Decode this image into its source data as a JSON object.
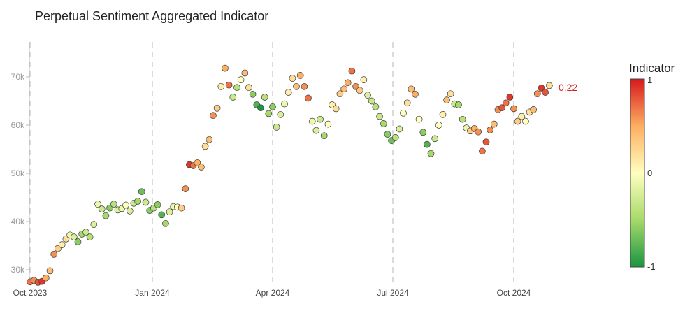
{
  "chart_data": {
    "type": "scatter",
    "title": "Perpetual Sentiment Aggregated Indicator",
    "xlabel": "",
    "ylabel": "",
    "x_ticks": [
      "Oct 2023",
      "Jan 2024",
      "Apr 2024",
      "Jul 2024",
      "Oct 2024"
    ],
    "y_ticks": [
      "30k",
      "40k",
      "50k",
      "60k",
      "70k"
    ],
    "ylim": [
      27000,
      77000
    ],
    "grid": "vertical dashed",
    "colorbar": {
      "title": "Indicator",
      "ticks": [
        "1",
        "0",
        "-1"
      ],
      "range": [
        -1,
        1
      ],
      "colors": [
        "#1a9641",
        "#a6d96a",
        "#ffffbf",
        "#fdae61",
        "#d7191c"
      ]
    },
    "last_value_label": "0.22",
    "series": [
      {
        "x": [
          "2023-10-01",
          "2023-10-04",
          "2023-10-07",
          "2023-10-10",
          "2023-10-13",
          "2023-10-16",
          "2023-10-19",
          "2023-10-22",
          "2023-10-25",
          "2023-10-28",
          "2023-10-31",
          "2023-11-03",
          "2023-11-06",
          "2023-11-09",
          "2023-11-12",
          "2023-11-15",
          "2023-11-18",
          "2023-11-21",
          "2023-11-24",
          "2023-11-27",
          "2023-11-30",
          "2023-12-03",
          "2023-12-06",
          "2023-12-09",
          "2023-12-12",
          "2023-12-15",
          "2023-12-18",
          "2023-12-21",
          "2023-12-24",
          "2023-12-27",
          "2023-12-30",
          "2024-01-02",
          "2024-01-05",
          "2024-01-08",
          "2024-01-11",
          "2024-01-14",
          "2024-01-17",
          "2024-01-20",
          "2024-01-23",
          "2024-01-26",
          "2024-01-29",
          "2024-02-01",
          "2024-02-04",
          "2024-02-07",
          "2024-02-10",
          "2024-02-13",
          "2024-02-16",
          "2024-02-19",
          "2024-02-22",
          "2024-02-25",
          "2024-02-28",
          "2024-03-02",
          "2024-03-05",
          "2024-03-08",
          "2024-03-11",
          "2024-03-14",
          "2024-03-17",
          "2024-03-20",
          "2024-03-23",
          "2024-03-26",
          "2024-03-29",
          "2024-04-01",
          "2024-04-04",
          "2024-04-07",
          "2024-04-10",
          "2024-04-13",
          "2024-04-16",
          "2024-04-19",
          "2024-04-22",
          "2024-04-25",
          "2024-04-28",
          "2024-05-01",
          "2024-05-04",
          "2024-05-07",
          "2024-05-10",
          "2024-05-13",
          "2024-05-16",
          "2024-05-19",
          "2024-05-22",
          "2024-05-25",
          "2024-05-28",
          "2024-05-31",
          "2024-06-03",
          "2024-06-06",
          "2024-06-09",
          "2024-06-12",
          "2024-06-15",
          "2024-06-18",
          "2024-06-21",
          "2024-06-24",
          "2024-06-27",
          "2024-06-30",
          "2024-07-03",
          "2024-07-06",
          "2024-07-09",
          "2024-07-12",
          "2024-07-15",
          "2024-07-18",
          "2024-07-21",
          "2024-07-24",
          "2024-07-27",
          "2024-07-30",
          "2024-08-02",
          "2024-08-05",
          "2024-08-08",
          "2024-08-11",
          "2024-08-14",
          "2024-08-17",
          "2024-08-20",
          "2024-08-23",
          "2024-08-26",
          "2024-08-29",
          "2024-09-01",
          "2024-09-04",
          "2024-09-07",
          "2024-09-10",
          "2024-09-13",
          "2024-09-16",
          "2024-09-19",
          "2024-09-22",
          "2024-09-25",
          "2024-09-28",
          "2024-10-01",
          "2024-10-04",
          "2024-10-07",
          "2024-10-10",
          "2024-10-13",
          "2024-10-16",
          "2024-10-19",
          "2024-10-22",
          "2024-10-25",
          "2024-10-28"
        ],
        "y": [
          27500,
          27800,
          27400,
          27600,
          28300,
          29800,
          33200,
          34400,
          35200,
          36400,
          37200,
          36800,
          35800,
          37400,
          37800,
          36800,
          39400,
          43600,
          42600,
          41200,
          42800,
          43600,
          42400,
          42700,
          43400,
          42200,
          43800,
          44200,
          46200,
          44000,
          42300,
          42800,
          43500,
          41400,
          39600,
          42000,
          43100,
          43000,
          42800,
          46800,
          51800,
          51600,
          52200,
          51300,
          55600,
          57000,
          62000,
          63500,
          68000,
          71800,
          68300,
          65800,
          67800,
          69400,
          70800,
          67800,
          66400,
          64200,
          63600,
          65800,
          62400,
          63800,
          59600,
          62200,
          64400,
          66800,
          69700,
          68000,
          70300,
          68000,
          65600,
          60800,
          58900,
          61200,
          57800,
          60200,
          64200,
          63400,
          66500,
          67500,
          68800,
          71200,
          68000,
          67200,
          69400,
          66200,
          65000,
          63800,
          61800,
          60300,
          58100,
          56800,
          57400,
          59200,
          62500,
          64600,
          67500,
          66400,
          61200,
          58500,
          56000,
          54100,
          57200,
          60000,
          62200,
          65200,
          66500,
          64400,
          64200,
          61200,
          59400,
          58800,
          59300,
          58600,
          54600,
          56500,
          59000,
          60200,
          63200,
          63600,
          64600,
          65800,
          63400,
          60800,
          61800,
          60800,
          62700,
          63200,
          66500,
          67700,
          66800,
          68200
        ],
        "indicator": [
          0.7,
          0.6,
          0.8,
          0.9,
          0.5,
          0.4,
          0.6,
          0.3,
          0.1,
          0.2,
          -0.1,
          -0.2,
          -0.6,
          -0.5,
          -0.3,
          -0.4,
          -0.2,
          -0.1,
          -0.3,
          -0.5,
          -0.6,
          -0.4,
          -0.2,
          -0.1,
          0.0,
          -0.2,
          -0.3,
          -0.5,
          -0.7,
          -0.3,
          -0.6,
          -0.4,
          -0.6,
          -0.8,
          -0.5,
          -0.2,
          -0.1,
          0.0,
          0.3,
          0.6,
          0.9,
          0.7,
          0.5,
          0.4,
          0.2,
          0.4,
          0.6,
          0.3,
          0.1,
          0.5,
          0.7,
          -0.3,
          -0.4,
          0.0,
          0.4,
          0.2,
          -0.6,
          -0.8,
          -1.0,
          -0.4,
          -0.5,
          -0.6,
          -0.3,
          -0.2,
          -0.1,
          0.1,
          0.2,
          0.4,
          0.5,
          0.6,
          0.7,
          -0.1,
          -0.2,
          -0.3,
          -0.5,
          0.0,
          0.1,
          0.2,
          0.3,
          0.4,
          0.5,
          0.7,
          0.6,
          0.3,
          0.1,
          -0.2,
          -0.3,
          -0.4,
          -0.3,
          -0.5,
          -0.6,
          -0.7,
          -0.4,
          -0.2,
          0.0,
          0.2,
          0.4,
          0.5,
          0.0,
          -0.6,
          -0.8,
          -0.5,
          -0.3,
          0.0,
          0.1,
          0.4,
          0.2,
          -0.3,
          -0.5,
          -0.4,
          -0.1,
          0.3,
          0.5,
          0.6,
          0.7,
          0.8,
          0.6,
          0.4,
          0.6,
          0.8,
          0.7,
          0.9,
          0.6,
          0.3,
          0.1,
          0.0,
          0.2,
          0.4,
          0.6,
          0.9,
          0.8,
          0.22
        ]
      }
    ]
  }
}
